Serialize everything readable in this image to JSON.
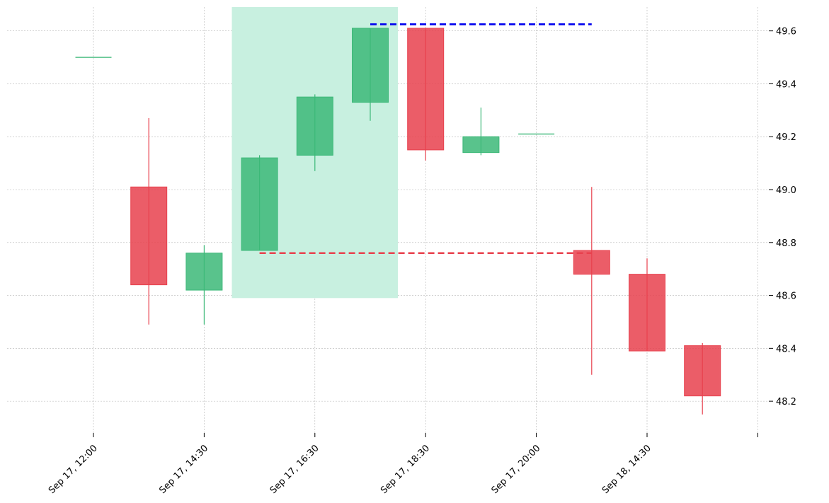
{
  "chart_data": {
    "type": "candlestick",
    "title": "",
    "xlabel": "",
    "ylabel": "",
    "ylim": [
      48.08,
      49.69
    ],
    "grid": true,
    "yticks": [
      48.2,
      48.4,
      48.6,
      48.8,
      49.0,
      49.2,
      49.4,
      49.6
    ],
    "xtick_labels": [
      "Sep 17, 12:00",
      "Sep 17, 14:30",
      "Sep 17, 16:30",
      "Sep 17, 18:30",
      "Sep 17, 20:00",
      "Sep 18, 14:30",
      ""
    ],
    "candles": [
      {
        "index": 0,
        "open": 49.5,
        "high": 49.5,
        "low": 49.5,
        "close": 49.5
      },
      {
        "index": 1,
        "open": 49.01,
        "high": 49.27,
        "low": 48.49,
        "close": 48.64
      },
      {
        "index": 2,
        "open": 48.62,
        "high": 48.79,
        "low": 48.49,
        "close": 48.76
      },
      {
        "index": 3,
        "open": 48.77,
        "high": 49.13,
        "low": 48.77,
        "close": 49.12
      },
      {
        "index": 4,
        "open": 49.13,
        "high": 49.36,
        "low": 49.07,
        "close": 49.35
      },
      {
        "index": 5,
        "open": 49.33,
        "high": 49.61,
        "low": 49.26,
        "close": 49.61
      },
      {
        "index": 6,
        "open": 49.61,
        "high": 49.61,
        "low": 49.11,
        "close": 49.15
      },
      {
        "index": 7,
        "open": 49.14,
        "high": 49.31,
        "low": 49.13,
        "close": 49.2
      },
      {
        "index": 8,
        "open": 49.21,
        "high": 49.21,
        "low": 49.21,
        "close": 49.21
      },
      {
        "index": 9,
        "open": 48.77,
        "high": 49.01,
        "low": 48.3,
        "close": 48.68
      },
      {
        "index": 10,
        "open": 48.68,
        "high": 48.74,
        "low": 48.39,
        "close": 48.39
      },
      {
        "index": 11,
        "open": 48.41,
        "high": 48.42,
        "low": 48.15,
        "close": 48.22
      }
    ],
    "highlight_zone": {
      "from_index": 2.5,
      "to_index": 5.5,
      "ymin": 48.59,
      "ymax": 49.69
    },
    "lines": [
      {
        "style": "dashed",
        "color": "#0000ee",
        "y": 49.625,
        "from_index": 5,
        "to_index": 9
      },
      {
        "style": "dashed",
        "color": "#e8414e",
        "y": 48.76,
        "from_index": 3,
        "to_index": 9
      }
    ],
    "colors": {
      "up": "#3cb878",
      "down": "#e8414e",
      "zone": "#c8f0e0",
      "grid": "#b4b4b4"
    }
  }
}
